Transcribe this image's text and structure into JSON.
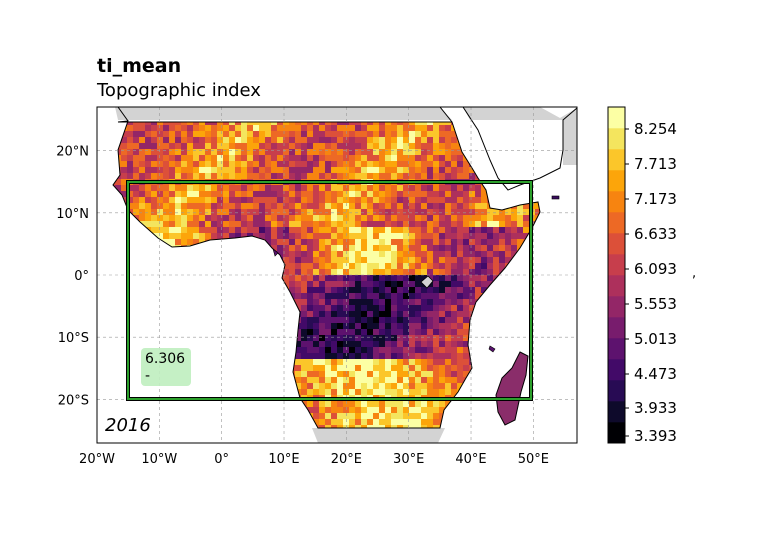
{
  "map": {
    "variable_name": "ti_mean",
    "variable_long_name": "Topographic index",
    "year_label": "2016",
    "region_value": "6.306",
    "region_unit": "-",
    "colormap": "inferno",
    "extent": {
      "lon": [
        -20,
        57
      ],
      "lat": [
        -27,
        27
      ]
    },
    "highlight_box": {
      "lon": [
        -15,
        50
      ],
      "lat": [
        -20,
        15
      ],
      "color": "#2ca02c"
    },
    "x_ticks": [
      "20°W",
      "10°W",
      "0°",
      "10°E",
      "20°E",
      "30°E",
      "40°E",
      "50°E"
    ],
    "y_ticks": [
      "20°N",
      "10°N",
      "0°",
      "10°S",
      "20°S"
    ],
    "gridlines": true
  },
  "colorbar": {
    "label": ",",
    "ticks": [
      "3.393",
      "3.933",
      "4.473",
      "5.013",
      "5.553",
      "6.093",
      "6.633",
      "7.173",
      "7.713",
      "8.254"
    ],
    "colors": [
      "#000004",
      "#0e0a2b",
      "#280b54",
      "#420a68",
      "#5d126e",
      "#781c6d",
      "#932667",
      "#ad305c",
      "#c73e4c",
      "#dc5039",
      "#ed6925",
      "#f78410",
      "#fca50a",
      "#fbc62a",
      "#f4e55e",
      "#fcffa4"
    ]
  }
}
